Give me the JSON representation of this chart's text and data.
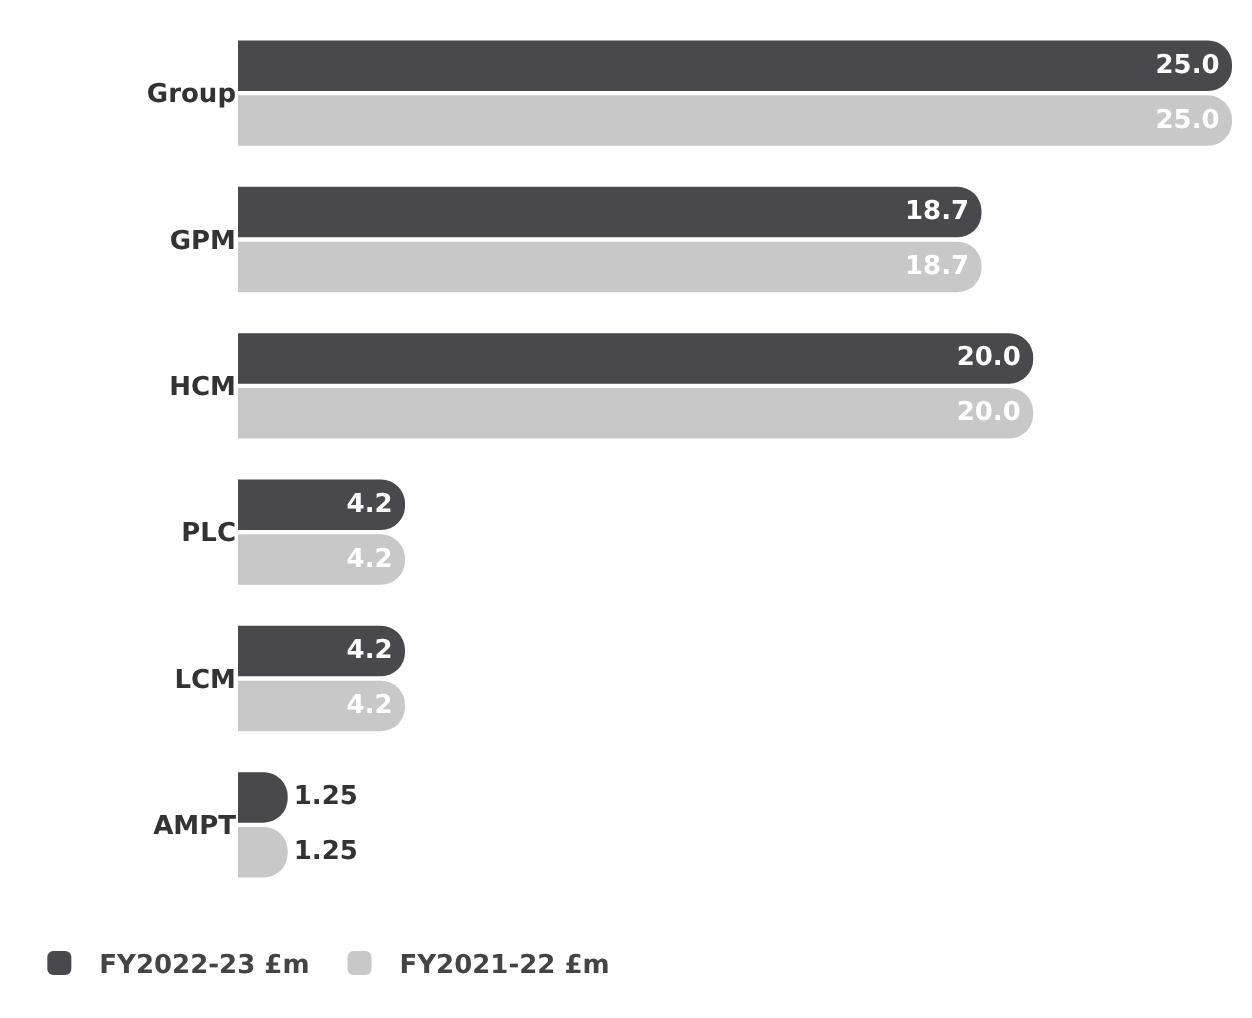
{
  "chart_data": {
    "type": "bar",
    "orientation": "horizontal",
    "categories": [
      "Group",
      "GPM",
      "HCM",
      "PLC",
      "LCM",
      "AMPT"
    ],
    "series": [
      {
        "name": "FY2022-23 £m",
        "color": "#48484d",
        "values": [
          25.0,
          18.7,
          20.0,
          4.2,
          4.2,
          1.25
        ],
        "value_labels": [
          "25.0",
          "18.7",
          "20.0",
          "4.2",
          "4.2",
          "1.25"
        ]
      },
      {
        "name": "FY2021-22 £m",
        "color": "#c8c8c9",
        "values": [
          25.0,
          18.7,
          20.0,
          4.2,
          4.2,
          1.25
        ],
        "value_labels": [
          "25.0",
          "18.7",
          "20.0",
          "4.2",
          "4.2",
          "1.25"
        ]
      }
    ],
    "legend": "bottom left"
  }
}
